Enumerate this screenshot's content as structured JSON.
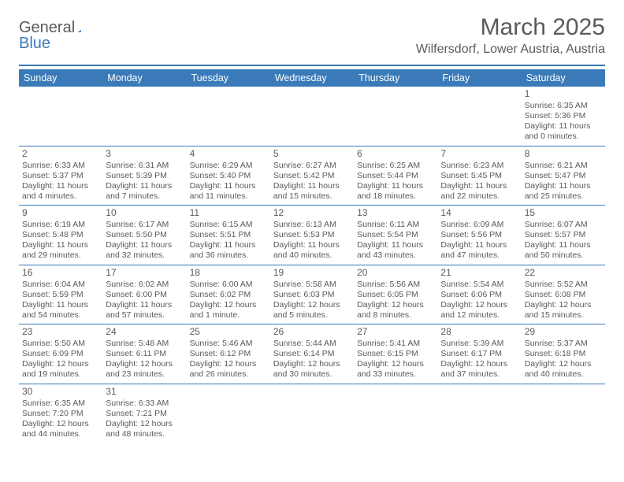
{
  "logo": {
    "text1": "General",
    "text2": "Blue"
  },
  "title": "March 2025",
  "location": "Wilfersdorf, Lower Austria, Austria",
  "header_bg": "#3a7ab8",
  "day_headers": [
    "Sunday",
    "Monday",
    "Tuesday",
    "Wednesday",
    "Thursday",
    "Friday",
    "Saturday"
  ],
  "weeks": [
    [
      null,
      null,
      null,
      null,
      null,
      null,
      {
        "n": "1",
        "sr": "Sunrise: 6:35 AM",
        "ss": "Sunset: 5:36 PM",
        "dl": "Daylight: 11 hours and 0 minutes."
      }
    ],
    [
      {
        "n": "2",
        "sr": "Sunrise: 6:33 AM",
        "ss": "Sunset: 5:37 PM",
        "dl": "Daylight: 11 hours and 4 minutes."
      },
      {
        "n": "3",
        "sr": "Sunrise: 6:31 AM",
        "ss": "Sunset: 5:39 PM",
        "dl": "Daylight: 11 hours and 7 minutes."
      },
      {
        "n": "4",
        "sr": "Sunrise: 6:29 AM",
        "ss": "Sunset: 5:40 PM",
        "dl": "Daylight: 11 hours and 11 minutes."
      },
      {
        "n": "5",
        "sr": "Sunrise: 6:27 AM",
        "ss": "Sunset: 5:42 PM",
        "dl": "Daylight: 11 hours and 15 minutes."
      },
      {
        "n": "6",
        "sr": "Sunrise: 6:25 AM",
        "ss": "Sunset: 5:44 PM",
        "dl": "Daylight: 11 hours and 18 minutes."
      },
      {
        "n": "7",
        "sr": "Sunrise: 6:23 AM",
        "ss": "Sunset: 5:45 PM",
        "dl": "Daylight: 11 hours and 22 minutes."
      },
      {
        "n": "8",
        "sr": "Sunrise: 6:21 AM",
        "ss": "Sunset: 5:47 PM",
        "dl": "Daylight: 11 hours and 25 minutes."
      }
    ],
    [
      {
        "n": "9",
        "sr": "Sunrise: 6:19 AM",
        "ss": "Sunset: 5:48 PM",
        "dl": "Daylight: 11 hours and 29 minutes."
      },
      {
        "n": "10",
        "sr": "Sunrise: 6:17 AM",
        "ss": "Sunset: 5:50 PM",
        "dl": "Daylight: 11 hours and 32 minutes."
      },
      {
        "n": "11",
        "sr": "Sunrise: 6:15 AM",
        "ss": "Sunset: 5:51 PM",
        "dl": "Daylight: 11 hours and 36 minutes."
      },
      {
        "n": "12",
        "sr": "Sunrise: 6:13 AM",
        "ss": "Sunset: 5:53 PM",
        "dl": "Daylight: 11 hours and 40 minutes."
      },
      {
        "n": "13",
        "sr": "Sunrise: 6:11 AM",
        "ss": "Sunset: 5:54 PM",
        "dl": "Daylight: 11 hours and 43 minutes."
      },
      {
        "n": "14",
        "sr": "Sunrise: 6:09 AM",
        "ss": "Sunset: 5:56 PM",
        "dl": "Daylight: 11 hours and 47 minutes."
      },
      {
        "n": "15",
        "sr": "Sunrise: 6:07 AM",
        "ss": "Sunset: 5:57 PM",
        "dl": "Daylight: 11 hours and 50 minutes."
      }
    ],
    [
      {
        "n": "16",
        "sr": "Sunrise: 6:04 AM",
        "ss": "Sunset: 5:59 PM",
        "dl": "Daylight: 11 hours and 54 minutes."
      },
      {
        "n": "17",
        "sr": "Sunrise: 6:02 AM",
        "ss": "Sunset: 6:00 PM",
        "dl": "Daylight: 11 hours and 57 minutes."
      },
      {
        "n": "18",
        "sr": "Sunrise: 6:00 AM",
        "ss": "Sunset: 6:02 PM",
        "dl": "Daylight: 12 hours and 1 minute."
      },
      {
        "n": "19",
        "sr": "Sunrise: 5:58 AM",
        "ss": "Sunset: 6:03 PM",
        "dl": "Daylight: 12 hours and 5 minutes."
      },
      {
        "n": "20",
        "sr": "Sunrise: 5:56 AM",
        "ss": "Sunset: 6:05 PM",
        "dl": "Daylight: 12 hours and 8 minutes."
      },
      {
        "n": "21",
        "sr": "Sunrise: 5:54 AM",
        "ss": "Sunset: 6:06 PM",
        "dl": "Daylight: 12 hours and 12 minutes."
      },
      {
        "n": "22",
        "sr": "Sunrise: 5:52 AM",
        "ss": "Sunset: 6:08 PM",
        "dl": "Daylight: 12 hours and 15 minutes."
      }
    ],
    [
      {
        "n": "23",
        "sr": "Sunrise: 5:50 AM",
        "ss": "Sunset: 6:09 PM",
        "dl": "Daylight: 12 hours and 19 minutes."
      },
      {
        "n": "24",
        "sr": "Sunrise: 5:48 AM",
        "ss": "Sunset: 6:11 PM",
        "dl": "Daylight: 12 hours and 23 minutes."
      },
      {
        "n": "25",
        "sr": "Sunrise: 5:46 AM",
        "ss": "Sunset: 6:12 PM",
        "dl": "Daylight: 12 hours and 26 minutes."
      },
      {
        "n": "26",
        "sr": "Sunrise: 5:44 AM",
        "ss": "Sunset: 6:14 PM",
        "dl": "Daylight: 12 hours and 30 minutes."
      },
      {
        "n": "27",
        "sr": "Sunrise: 5:41 AM",
        "ss": "Sunset: 6:15 PM",
        "dl": "Daylight: 12 hours and 33 minutes."
      },
      {
        "n": "28",
        "sr": "Sunrise: 5:39 AM",
        "ss": "Sunset: 6:17 PM",
        "dl": "Daylight: 12 hours and 37 minutes."
      },
      {
        "n": "29",
        "sr": "Sunrise: 5:37 AM",
        "ss": "Sunset: 6:18 PM",
        "dl": "Daylight: 12 hours and 40 minutes."
      }
    ],
    [
      {
        "n": "30",
        "sr": "Sunrise: 6:35 AM",
        "ss": "Sunset: 7:20 PM",
        "dl": "Daylight: 12 hours and 44 minutes."
      },
      {
        "n": "31",
        "sr": "Sunrise: 6:33 AM",
        "ss": "Sunset: 7:21 PM",
        "dl": "Daylight: 12 hours and 48 minutes."
      },
      null,
      null,
      null,
      null,
      null
    ]
  ]
}
